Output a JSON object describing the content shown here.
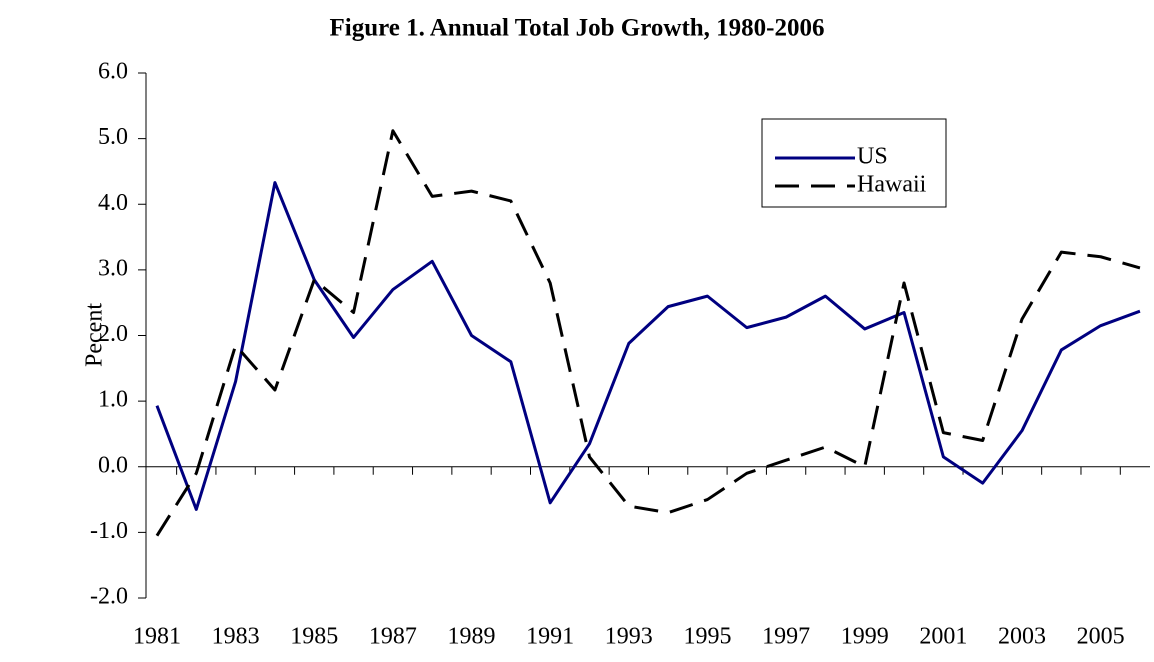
{
  "chart_data": {
    "type": "line",
    "title": "Figure 1.  Annual Total Job Growth, 1980-2006",
    "y_label": "Pecent",
    "categories": [
      "1981",
      null,
      "1983",
      null,
      "1985",
      null,
      "1987",
      null,
      "1989",
      null,
      "1991",
      null,
      "1993",
      null,
      "1995",
      null,
      "1997",
      null,
      "1999",
      null,
      "2001",
      null,
      "2003",
      null,
      "2005",
      null
    ],
    "series": [
      {
        "name": "US",
        "color": "#000080",
        "dashed": false,
        "values": [
          0.93,
          -0.65,
          1.3,
          4.33,
          2.85,
          1.97,
          2.7,
          3.13,
          2.0,
          1.6,
          -0.55,
          0.35,
          1.88,
          2.44,
          2.6,
          2.12,
          2.28,
          2.6,
          2.1,
          2.35,
          0.15,
          -0.25,
          0.55,
          1.78,
          2.15,
          2.37
        ]
      },
      {
        "name": "Hawaii",
        "color": "#000000",
        "dashed": true,
        "values": [
          -1.05,
          -0.1,
          1.85,
          1.17,
          2.85,
          2.35,
          5.12,
          4.12,
          4.2,
          4.05,
          2.8,
          0.15,
          -0.6,
          -0.7,
          -0.5,
          -0.1,
          0.1,
          0.3,
          0.0,
          2.8,
          0.52,
          0.4,
          2.25,
          3.27,
          3.2,
          3.03
        ]
      }
    ],
    "ylim": [
      -2,
      6
    ],
    "yticks": [
      {
        "value": -2,
        "label": "-2.0"
      },
      {
        "value": -1,
        "label": "-1.0"
      },
      {
        "value": 0,
        "label": "0.0"
      },
      {
        "value": 1,
        "label": "1.0"
      },
      {
        "value": 2,
        "label": "2.0"
      },
      {
        "value": 3,
        "label": "3.0"
      },
      {
        "value": 4,
        "label": "4.0"
      },
      {
        "value": 5,
        "label": "5.0"
      },
      {
        "value": 6,
        "label": "6.0"
      }
    ],
    "grid": false,
    "legend": "upper right"
  }
}
